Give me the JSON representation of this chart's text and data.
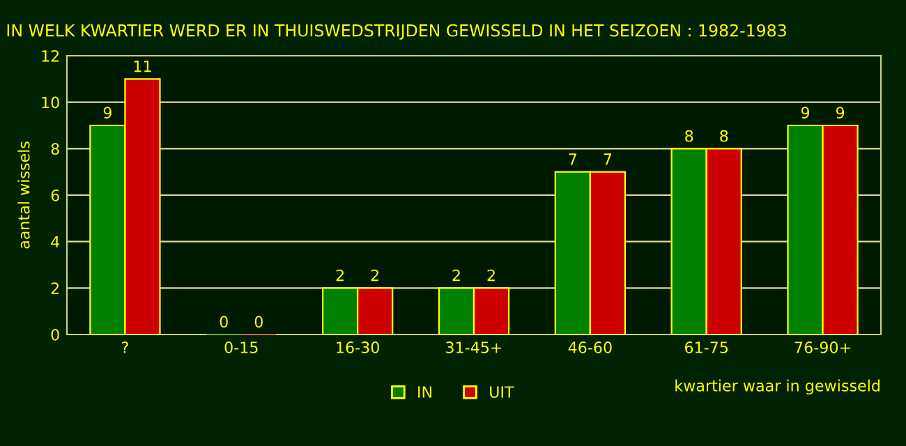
{
  "chart_data": {
    "type": "bar",
    "title": "IN WELK KWARTIER WERD ER IN THUISWEDSTRIJDEN GEWISSELD IN HET SEIZOEN : 1982-1983",
    "xlabel": "kwartier waar in gewisseld",
    "ylabel": "aantal wissels",
    "categories": [
      "?",
      "0-15",
      "16-30",
      "31-45+",
      "46-60",
      "61-75",
      "76-90+"
    ],
    "series": [
      {
        "name": "IN",
        "color": "#008000",
        "values": [
          9,
          0,
          2,
          2,
          7,
          8,
          9
        ]
      },
      {
        "name": "UIT",
        "color": "#cc0000",
        "values": [
          11,
          0,
          2,
          2,
          7,
          8,
          9
        ]
      }
    ],
    "ylim": [
      0,
      12
    ],
    "yticks": [
      0,
      2,
      4,
      6,
      8,
      10,
      12
    ],
    "grid": "y",
    "legend": "bottom",
    "data_labels": true
  }
}
